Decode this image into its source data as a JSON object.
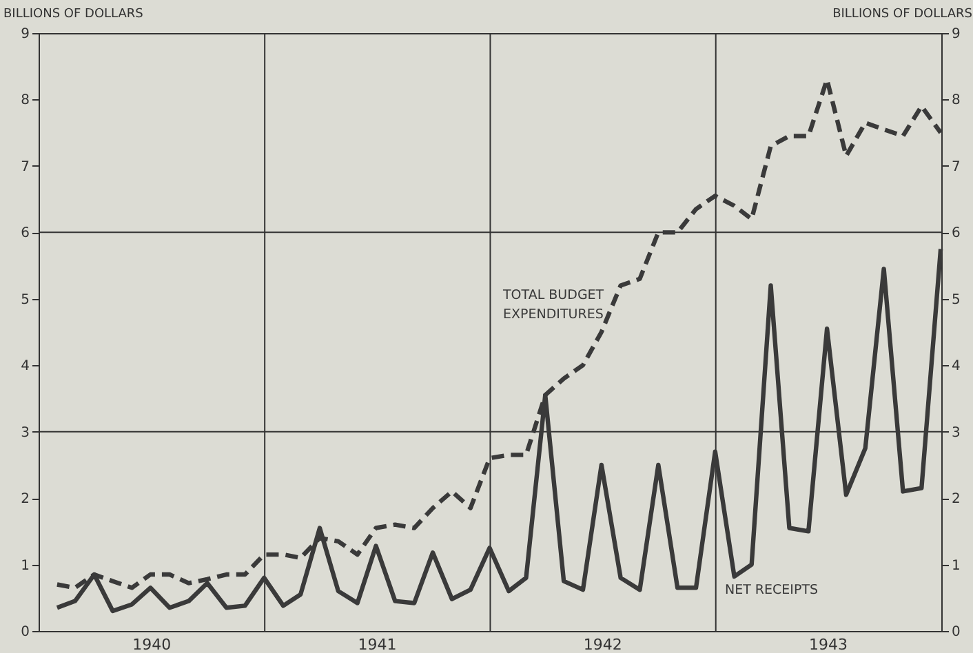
{
  "chart_data": {
    "type": "line",
    "ylabel": "BILLIONS OF DOLLARS",
    "y2label": "BILLIONS OF DOLLARS",
    "x": [
      "1940-01-31",
      "1940-02-29",
      "1940-03-31",
      "1940-04-30",
      "1940-05-31",
      "1940-06-30",
      "1940-07-31",
      "1940-08-31",
      "1940-09-30",
      "1940-10-31",
      "1940-11-30",
      "1940-12-31",
      "1941-01-31",
      "1941-02-28",
      "1941-03-31",
      "1941-04-30",
      "1941-05-31",
      "1941-06-30",
      "1941-07-31",
      "1941-08-31",
      "1941-09-30",
      "1941-10-31",
      "1941-11-30",
      "1941-12-31",
      "1942-01-31",
      "1942-02-28",
      "1942-03-31",
      "1942-04-30",
      "1942-05-31",
      "1942-06-30",
      "1942-07-31",
      "1942-08-31",
      "1942-09-30",
      "1942-10-31",
      "1942-11-30",
      "1942-12-31",
      "1943-01-31",
      "1943-02-28",
      "1943-03-31",
      "1943-04-30",
      "1943-05-31",
      "1943-06-30",
      "1943-07-31",
      "1943-08-31",
      "1943-09-30",
      "1943-10-31",
      "1943-11-30",
      "1943-12-31"
    ],
    "series": [
      {
        "name": "TOTAL BUDGET\nEXPENDITURES",
        "color": "#3a3a3a",
        "line_style": "dashed",
        "values": [
          0.7,
          0.65,
          0.85,
          0.75,
          0.65,
          0.85,
          0.85,
          0.72,
          0.78,
          0.85,
          0.85,
          1.15,
          1.15,
          1.1,
          1.4,
          1.35,
          1.15,
          1.55,
          1.6,
          1.55,
          1.85,
          2.1,
          1.85,
          2.6,
          2.65,
          2.65,
          3.55,
          3.8,
          4.0,
          4.5,
          5.2,
          5.3,
          6.0,
          6.0,
          6.35,
          6.55,
          6.4,
          6.2,
          7.3,
          7.45,
          7.45,
          8.3,
          7.15,
          7.65,
          7.55,
          7.45,
          7.9,
          7.5
        ]
      },
      {
        "name": "NET RECEIPTS",
        "color": "#3a3a3a",
        "line_style": "solid",
        "values": [
          0.35,
          0.45,
          0.85,
          0.3,
          0.4,
          0.65,
          0.35,
          0.45,
          0.72,
          0.35,
          0.38,
          0.8,
          0.38,
          0.55,
          1.55,
          0.6,
          0.42,
          1.28,
          0.45,
          0.42,
          1.18,
          0.48,
          0.62,
          1.25,
          0.6,
          0.8,
          3.55,
          0.75,
          0.62,
          2.5,
          0.8,
          0.62,
          2.5,
          0.65,
          0.65,
          2.7,
          0.82,
          1.0,
          5.2,
          1.55,
          1.5,
          4.55,
          2.05,
          2.75,
          5.45,
          2.1,
          2.15,
          5.75
        ]
      }
    ],
    "xlim": [
      "1940-01-01",
      "1944-01-01"
    ],
    "xticks": [
      {
        "value": "1940-07-01",
        "label": "1940"
      },
      {
        "value": "1941-07-01",
        "label": "1941"
      },
      {
        "value": "1942-07-01",
        "label": "1942"
      },
      {
        "value": "1943-07-01",
        "label": "1943"
      }
    ],
    "ylim": [
      0,
      9
    ],
    "yticks": [
      0,
      1,
      2,
      3,
      4,
      5,
      6,
      7,
      8,
      9
    ],
    "y2lim": [
      0,
      9
    ],
    "y2ticks": [
      0,
      1,
      2,
      3,
      4,
      5,
      6,
      7,
      8,
      9
    ],
    "ref_lines": [
      {
        "axis": "y",
        "value": 3,
        "label": null
      },
      {
        "axis": "y",
        "value": 6,
        "label": null
      },
      {
        "axis": "x",
        "value": "1941-01-01",
        "label": null
      },
      {
        "axis": "x",
        "value": "1942-01-01",
        "label": null
      },
      {
        "axis": "x",
        "value": "1943-01-01",
        "label": null
      }
    ],
    "grid": false
  }
}
